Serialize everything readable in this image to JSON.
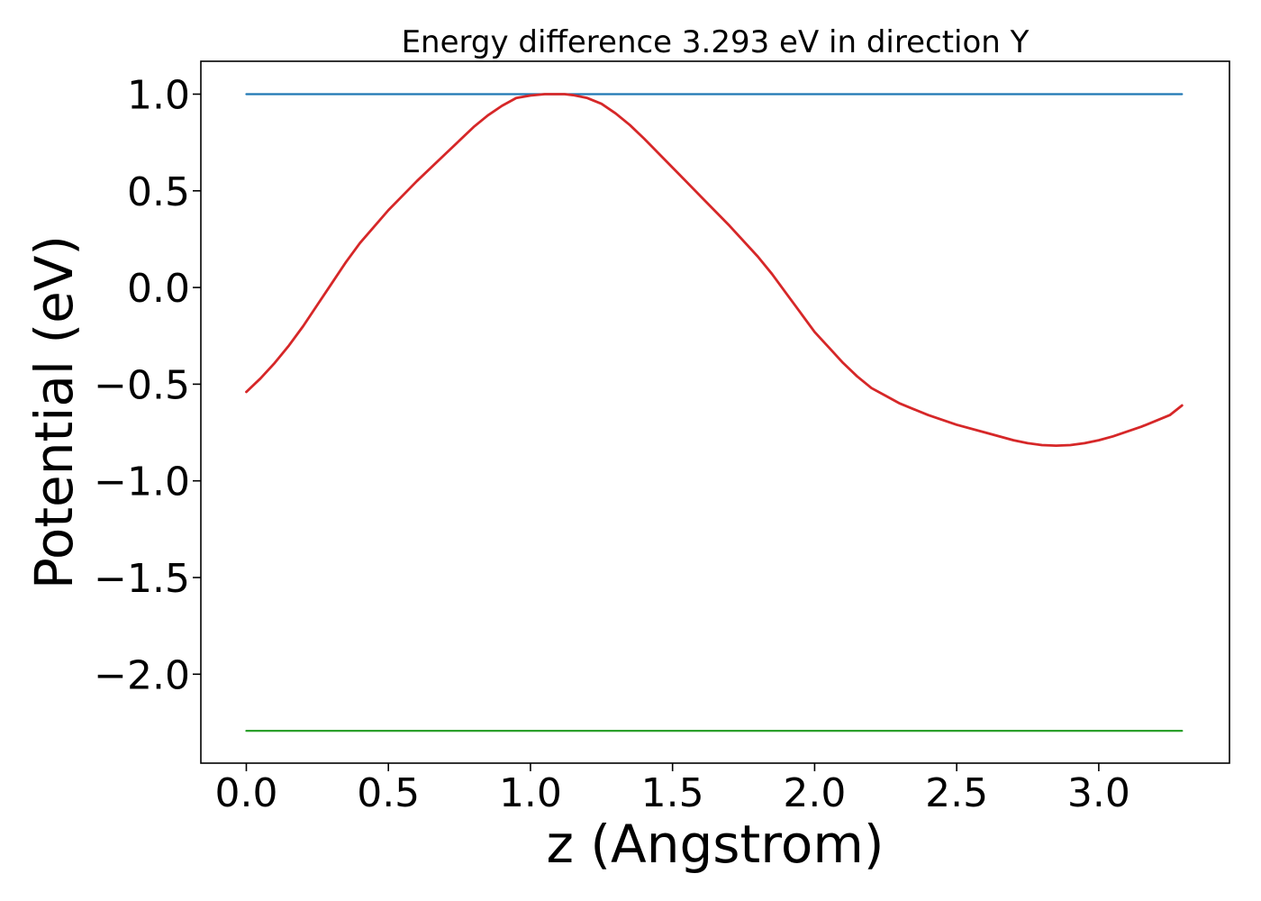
{
  "chart_data": {
    "type": "line",
    "title": "Energy difference 3.293 eV in direction Y",
    "xlabel": "z (Angstrom)",
    "ylabel": "Potential (eV)",
    "xlim": [
      -0.16,
      3.46
    ],
    "ylim": [
      -2.46,
      1.17
    ],
    "xticks": [
      0.0,
      0.5,
      1.0,
      1.5,
      2.0,
      2.5,
      3.0
    ],
    "xtick_labels": [
      "0.0",
      "0.5",
      "1.0",
      "1.5",
      "2.0",
      "2.5",
      "3.0"
    ],
    "yticks": [
      1.0,
      0.5,
      0.0,
      -0.5,
      -1.0,
      -1.5,
      -2.0
    ],
    "ytick_labels": [
      "1.0",
      "0.5",
      "0.0",
      "−0.5",
      "−1.0",
      "−1.5",
      "−2.0"
    ],
    "grid": false,
    "legend": "none",
    "series": [
      {
        "color": "#1f77b4",
        "x": [
          0.0,
          3.293
        ],
        "y": [
          1.0,
          1.0
        ]
      },
      {
        "color": "#d62728",
        "x": [
          0.0,
          0.05,
          0.1,
          0.15,
          0.2,
          0.25,
          0.3,
          0.35,
          0.4,
          0.5,
          0.6,
          0.7,
          0.8,
          0.85,
          0.9,
          0.95,
          1.0,
          1.05,
          1.1,
          1.12,
          1.15,
          1.2,
          1.25,
          1.3,
          1.35,
          1.4,
          1.5,
          1.6,
          1.7,
          1.8,
          1.85,
          1.9,
          1.95,
          2.0,
          2.05,
          2.1,
          2.15,
          2.2,
          2.25,
          2.3,
          2.35,
          2.4,
          2.5,
          2.6,
          2.7,
          2.75,
          2.8,
          2.85,
          2.9,
          2.95,
          3.0,
          3.05,
          3.1,
          3.15,
          3.2,
          3.25,
          3.293
        ],
        "y": [
          -0.54,
          -0.47,
          -0.39,
          -0.3,
          -0.2,
          -0.09,
          0.02,
          0.13,
          0.23,
          0.4,
          0.55,
          0.69,
          0.83,
          0.89,
          0.94,
          0.98,
          0.993,
          1.0,
          1.0,
          1.0,
          0.995,
          0.98,
          0.95,
          0.9,
          0.84,
          0.77,
          0.62,
          0.47,
          0.32,
          0.16,
          0.07,
          -0.03,
          -0.13,
          -0.23,
          -0.31,
          -0.39,
          -0.46,
          -0.52,
          -0.56,
          -0.6,
          -0.63,
          -0.66,
          -0.71,
          -0.75,
          -0.79,
          -0.805,
          -0.815,
          -0.818,
          -0.815,
          -0.805,
          -0.79,
          -0.77,
          -0.745,
          -0.72,
          -0.69,
          -0.66,
          -0.61
        ]
      },
      {
        "color": "#2ca02c",
        "x": [
          0.0,
          3.293
        ],
        "y": [
          -2.293,
          -2.293
        ]
      }
    ]
  }
}
